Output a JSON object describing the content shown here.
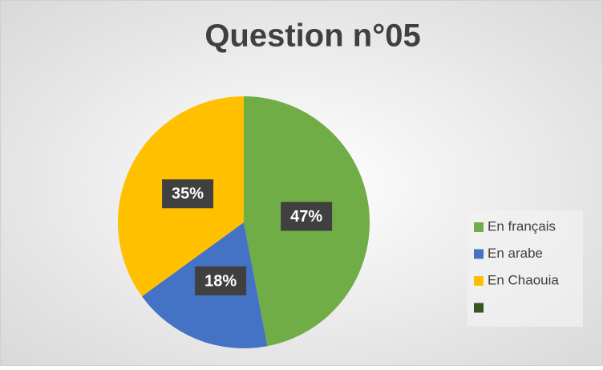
{
  "chart_data": {
    "type": "pie",
    "title": "Question n°05",
    "categories": [
      "En français",
      "En arabe",
      "En Chaouia",
      null
    ],
    "values": [
      47,
      18,
      35,
      0
    ],
    "value_labels": [
      "47%",
      "18%",
      "35%",
      null
    ],
    "colors": [
      "#70ad47",
      "#4472c4",
      "#ffc000",
      "#375623"
    ],
    "legend": "right"
  }
}
